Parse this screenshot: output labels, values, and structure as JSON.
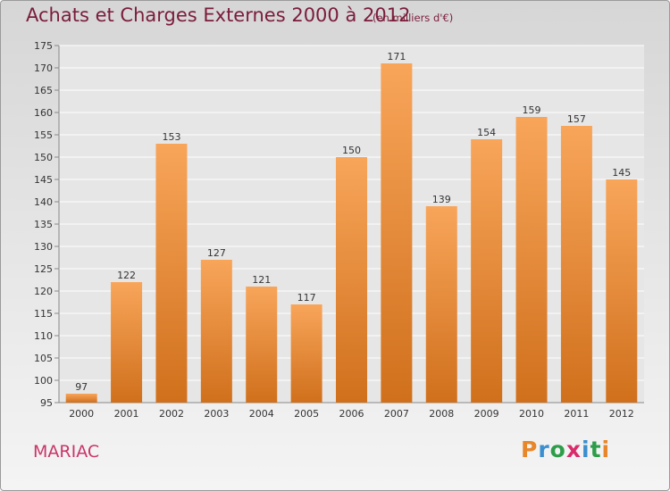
{
  "header": {
    "title": "Achats et Charges Externes 2000 à 2012",
    "subtitle": "(en milliers d'€)"
  },
  "place": "MARIAC",
  "logo": {
    "letters": [
      "P",
      "r",
      "o",
      "x",
      "i",
      "t",
      "i"
    ],
    "colors": [
      "#e8862a",
      "#3c8fcf",
      "#2e9d4a",
      "#d92b6b",
      "#3c8fcf",
      "#2e9d4a",
      "#e8862a"
    ]
  },
  "chart_data": {
    "type": "bar",
    "categories": [
      "2000",
      "2001",
      "2002",
      "2003",
      "2004",
      "2005",
      "2006",
      "2007",
      "2008",
      "2009",
      "2010",
      "2011",
      "2012"
    ],
    "values": [
      97,
      122,
      153,
      127,
      121,
      117,
      150,
      171,
      139,
      154,
      159,
      157,
      145
    ],
    "title": "Achats et Charges Externes 2000 à 2012",
    "subtitle": "(en milliers d'€)",
    "xlabel": "",
    "ylabel": "",
    "ylim": [
      95,
      175
    ],
    "yticks": [
      95,
      100,
      105,
      110,
      115,
      120,
      125,
      130,
      135,
      140,
      145,
      150,
      155,
      160,
      165,
      170,
      175
    ],
    "grid": true,
    "legend": "none",
    "colors": {
      "bar_top": "#f8a55a",
      "bar_bottom": "#d0701c",
      "grid": "#ffffff",
      "axis": "#888888"
    }
  }
}
